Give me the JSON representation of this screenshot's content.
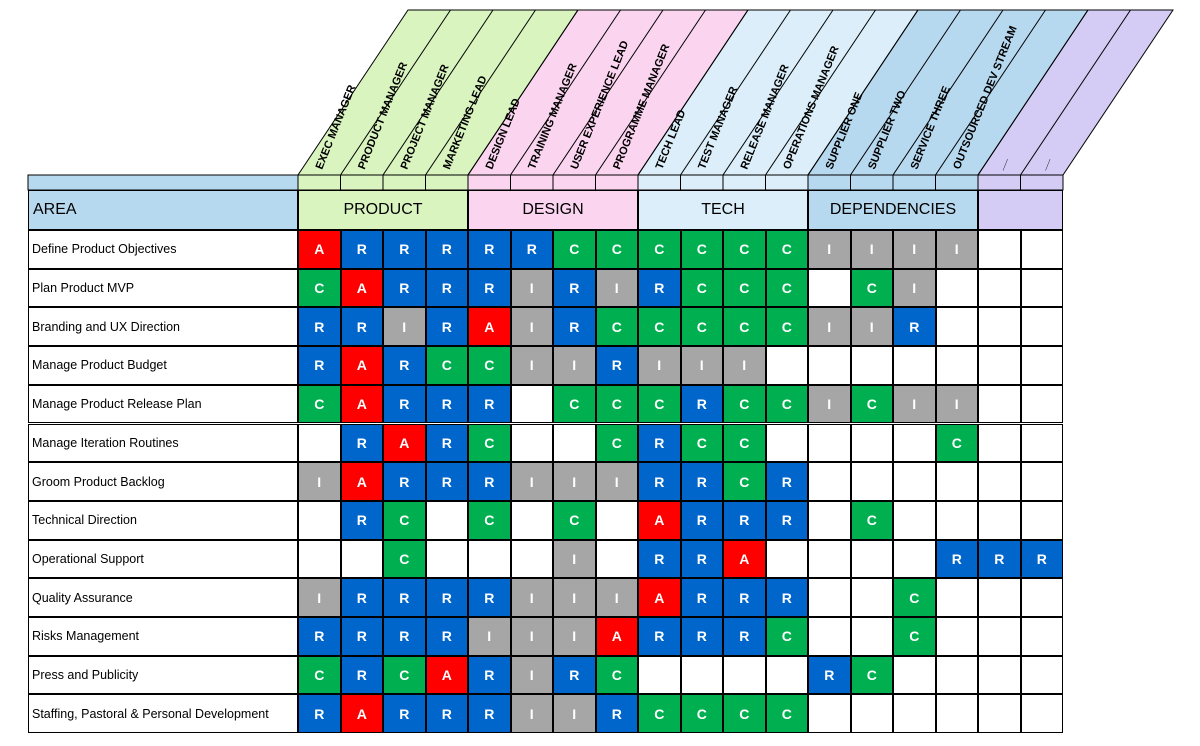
{
  "colors": {
    "A": "#ff0000",
    "R": "#0066cc",
    "C": "#00b050",
    "I": "#a6a6a6",
    "product": "#d9f4bf",
    "design": "#fbd5f0",
    "tech": "#dbeef9",
    "dependencies": "#b7d9ef",
    "extra": "#d5ccf6",
    "area_header": "#b7d9ef"
  },
  "area_label": "AREA",
  "groups": [
    {
      "name": "PRODUCT",
      "color_key": "product",
      "span": 4
    },
    {
      "name": "DESIGN",
      "color_key": "design",
      "span": 4
    },
    {
      "name": "TECH",
      "color_key": "tech",
      "span": 4
    },
    {
      "name": "DEPENDENCIES",
      "color_key": "dependencies",
      "span": 4
    },
    {
      "name": "",
      "color_key": "extra",
      "span": 2
    }
  ],
  "roles": [
    "EXEC MANAGER",
    "PRODUCT MANAGER",
    "PROJECT MANAGER",
    "MARKETING LEAD",
    "DESIGN LEAD",
    "TRAINING MANAGER",
    "USER EXPERIENCE LEAD",
    "PROGRAMME MANAGER",
    "TECH LEAD",
    "TEST MANAGER",
    "RELEASE MANAGER",
    "OPERATIONS MANAGER",
    "SUPPLIER ONE",
    "SUPPLIER TWO",
    "SERVICE THREE",
    "OUTSOURCED DEV STREAM",
    "__",
    "__"
  ],
  "rows": [
    {
      "area": "Define Product Objectives",
      "cells": [
        "A",
        "R",
        "R",
        "R",
        "R",
        "R",
        "C",
        "C",
        "C",
        "C",
        "C",
        "C",
        "I",
        "I",
        "I",
        "I",
        "",
        ""
      ]
    },
    {
      "area": "Plan Product MVP",
      "cells": [
        "C",
        "A",
        "R",
        "R",
        "R",
        "I",
        "R",
        "I",
        "R",
        "C",
        "C",
        "C",
        "",
        "C",
        "I",
        "",
        "",
        ""
      ]
    },
    {
      "area": "Branding and UX Direction",
      "cells": [
        "R",
        "R",
        "I",
        "R",
        "A",
        "I",
        "R",
        "C",
        "C",
        "C",
        "C",
        "C",
        "I",
        "I",
        "R",
        "",
        "",
        ""
      ]
    },
    {
      "area": "Manage Product Budget",
      "cells": [
        "R",
        "A",
        "R",
        "C",
        "C",
        "I",
        "I",
        "R",
        "I",
        "I",
        "I",
        "",
        "",
        "",
        "",
        "",
        "",
        ""
      ]
    },
    {
      "area": "Manage Product Release Plan",
      "cells": [
        "C",
        "A",
        "R",
        "R",
        "R",
        "",
        "C",
        "C",
        "C",
        "R",
        "C",
        "C",
        "I",
        "C",
        "I",
        "I",
        "",
        ""
      ]
    },
    {
      "area": "Manage Iteration Routines",
      "cells": [
        "",
        "R",
        "A",
        "R",
        "C",
        "",
        "",
        "C",
        "R",
        "C",
        "C",
        "",
        "",
        "",
        "",
        "C",
        "",
        ""
      ]
    },
    {
      "area": "Groom Product Backlog",
      "cells": [
        "I",
        "A",
        "R",
        "R",
        "R",
        "I",
        "I",
        "I",
        "R",
        "R",
        "C",
        "R",
        "",
        "",
        "",
        "",
        "",
        ""
      ]
    },
    {
      "area": "Technical Direction",
      "cells": [
        "",
        "R",
        "C",
        "",
        "C",
        "",
        "C",
        "",
        "A",
        "R",
        "R",
        "R",
        "",
        "C",
        "",
        "",
        "",
        ""
      ]
    },
    {
      "area": "Operational Support",
      "cells": [
        "",
        "",
        "C",
        "",
        "",
        "",
        "I",
        "",
        "R",
        "R",
        "A",
        "",
        "",
        "",
        "",
        "R",
        "R",
        "R"
      ]
    },
    {
      "area": "Quality Assurance",
      "cells": [
        "I",
        "R",
        "R",
        "R",
        "R",
        "I",
        "I",
        "I",
        "A",
        "R",
        "R",
        "R",
        "",
        "",
        "C",
        "",
        "",
        ""
      ]
    },
    {
      "area": "Risks Management",
      "cells": [
        "R",
        "R",
        "R",
        "R",
        "I",
        "I",
        "I",
        "A",
        "R",
        "R",
        "R",
        "C",
        "",
        "",
        "C",
        "",
        "",
        ""
      ]
    },
    {
      "area": "Press and Publicity",
      "cells": [
        "C",
        "R",
        "C",
        "A",
        "R",
        "I",
        "R",
        "C",
        "",
        "",
        "",
        "",
        "R",
        "C",
        "",
        "",
        "",
        ""
      ]
    },
    {
      "area": "Staffing, Pastoral & Personal Development",
      "cells": [
        "R",
        "A",
        "R",
        "R",
        "R",
        "I",
        "I",
        "R",
        "C",
        "C",
        "C",
        "C",
        "",
        "",
        "",
        "",
        "",
        ""
      ]
    }
  ]
}
